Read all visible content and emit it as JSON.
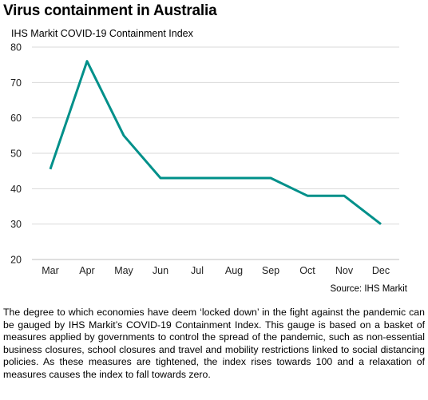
{
  "title": "Virus containment in Australia",
  "subtitle": "IHS Markit COVID-19 Containment  Index",
  "source": "Source: IHS Markit",
  "caption": "The degree to which economies have deem ‘locked down’ in the fight against the pandemic can be gauged by IHS Markit’s COVID-19 Containment Index. This gauge is based on a basket of measures applied by governments to control the spread of the pandemic, such as non-essential business closures, school closures and travel and mobility restrictions linked to social distancing policies. As these measures are tightened, the index rises towards 100 and a relaxation of measures causes the index to fall towards zero.",
  "chart_data": {
    "type": "line",
    "categories": [
      "Mar",
      "Apr",
      "May",
      "Jun",
      "Jul",
      "Aug",
      "Sep",
      "Oct",
      "Nov",
      "Dec"
    ],
    "series": [
      {
        "values": [
          45.5,
          76,
          55,
          43,
          43,
          43,
          43,
          38,
          38,
          30
        ]
      }
    ],
    "ylim": [
      20,
      80
    ],
    "yticks": [
      20,
      30,
      40,
      50,
      60,
      70,
      80
    ],
    "grid": true,
    "line_color": "#00908a",
    "grid_color": "#d9d9d9"
  }
}
